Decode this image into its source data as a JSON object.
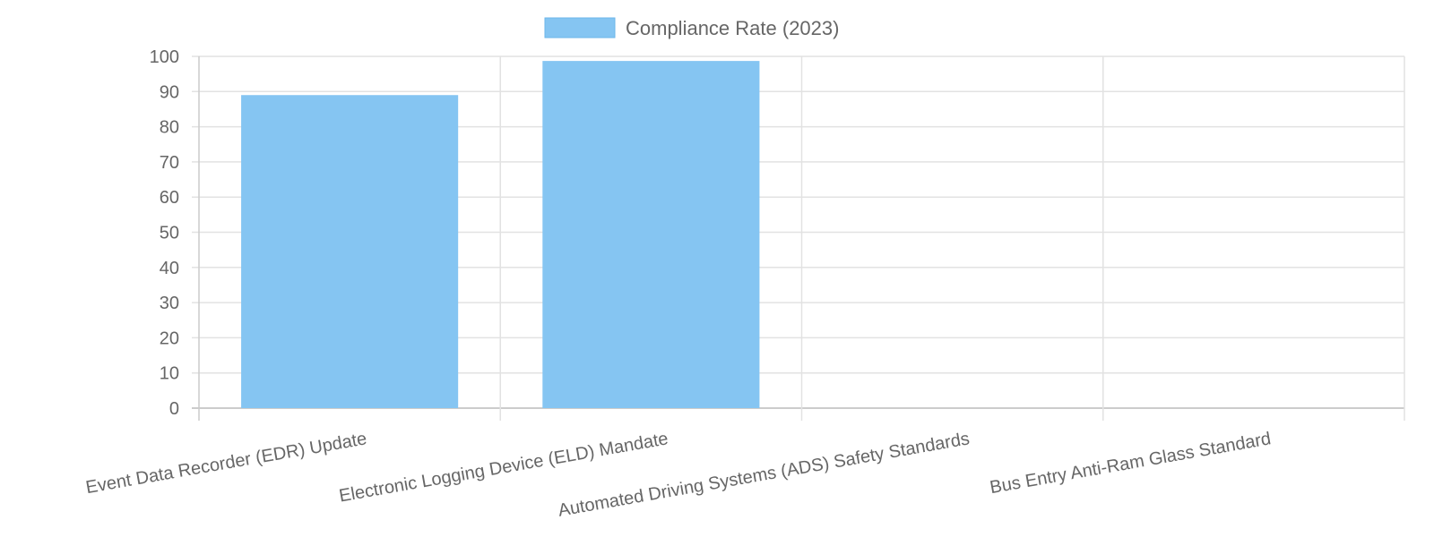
{
  "chart_data": {
    "type": "bar",
    "categories": [
      "Event Data Recorder (EDR) Update",
      "Electronic Logging Device (ELD) Mandate",
      "Automated Driving Systems (ADS) Safety Standards",
      "Bus Entry Anti-Ram Glass Standard"
    ],
    "series": [
      {
        "name": "Compliance Rate (2023)",
        "values": [
          89,
          98.7,
          null,
          null
        ],
        "color": "#85C5F2"
      }
    ],
    "ylim": [
      0,
      100
    ],
    "yticks": [
      "0",
      "10",
      "20",
      "30",
      "40",
      "50",
      "60",
      "70",
      "80",
      "90",
      "100"
    ],
    "grid": true,
    "legend": "top"
  }
}
